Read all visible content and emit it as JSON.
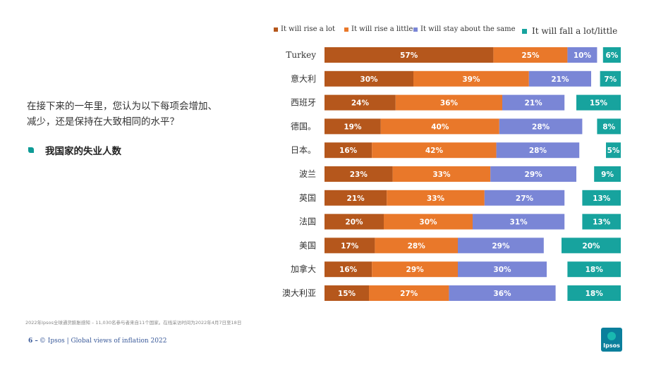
{
  "question": {
    "text": "在接下来的一年里，您认为以下每项会增加、减少，还是保持在大致相同的水平？"
  },
  "subject": {
    "label": "我国家的失业人数"
  },
  "footer": {
    "source": "2022年Ipsos全球通货膨胀感知 – 11,030名参与者来自11个国家。在线采访时间为2022年4月7日至18日",
    "page_number": "6 –",
    "credit": "© Ipsos | Global views of inflation 2022",
    "logo_text": "Ipsos"
  },
  "colors": {
    "rise_lot": "#b5571c",
    "rise_little": "#e9782a",
    "same": "#7a86d6",
    "fall": "#17a39e"
  },
  "chart_data": {
    "type": "bar",
    "orientation": "horizontal",
    "stacked": true,
    "legend_position": "top",
    "categories": [
      "Turkey",
      "意大利",
      "西班牙",
      "德国。",
      "日本。",
      "波兰",
      "英国",
      "法国",
      "美国",
      "加拿大",
      "澳大利亚"
    ],
    "series": [
      {
        "name": "It will rise a lot",
        "color": "#b5571c",
        "values": [
          57,
          30,
          24,
          19,
          16,
          23,
          21,
          20,
          17,
          16,
          15
        ]
      },
      {
        "name": "It will rise a little",
        "color": "#e9782a",
        "values": [
          25,
          39,
          36,
          40,
          42,
          33,
          33,
          30,
          28,
          29,
          27
        ]
      },
      {
        "name": "It will stay about the same",
        "color": "#7a86d6",
        "values": [
          10,
          21,
          21,
          28,
          28,
          29,
          27,
          31,
          29,
          30,
          36
        ]
      },
      {
        "name": "It will fall a lot/little",
        "color": "#17a39e",
        "values": [
          6,
          7,
          15,
          8,
          5,
          9,
          13,
          13,
          20,
          18,
          18
        ]
      }
    ],
    "value_suffix": "%"
  }
}
